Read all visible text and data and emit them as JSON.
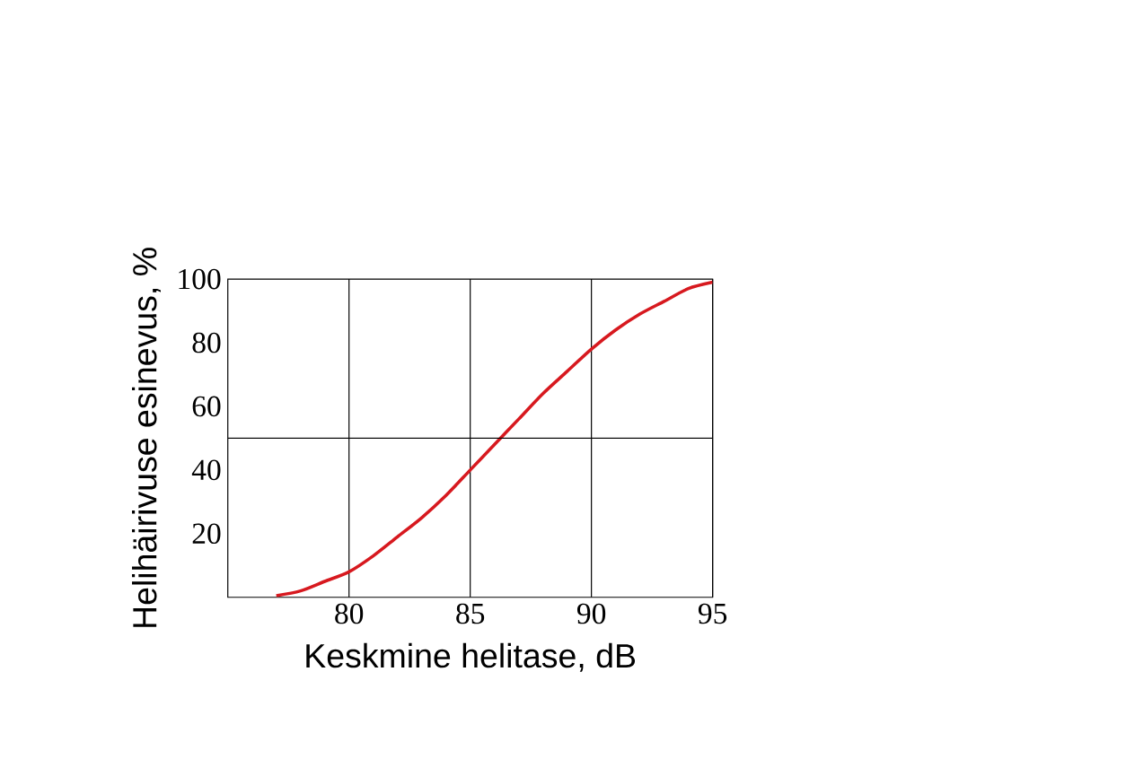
{
  "chart_data": {
    "type": "line",
    "xlabel": "Keskmine helitase, dB",
    "ylabel": "Helihäirivuse esinevus, %",
    "x": [
      77,
      78,
      79,
      80,
      81,
      82,
      83,
      84,
      85,
      86,
      87,
      88,
      89,
      90,
      91,
      92,
      93,
      94,
      95
    ],
    "series": [
      {
        "color": "#d7191f",
        "values": [
          0.5,
          2,
          5,
          8,
          13,
          19,
          25,
          32,
          40,
          48,
          56,
          64,
          71,
          78,
          84,
          89,
          93,
          97,
          99
        ]
      }
    ],
    "xlim": [
      75,
      95
    ],
    "ylim": [
      0,
      100
    ],
    "xticks": [
      80,
      85,
      90,
      95
    ],
    "yticks": [
      20,
      40,
      60,
      80,
      100
    ],
    "grid": "x",
    "ref_lines": [
      {
        "axis": "y",
        "value": 50,
        "color": "#000000"
      }
    ],
    "marker": "none",
    "line_style": "solid"
  }
}
